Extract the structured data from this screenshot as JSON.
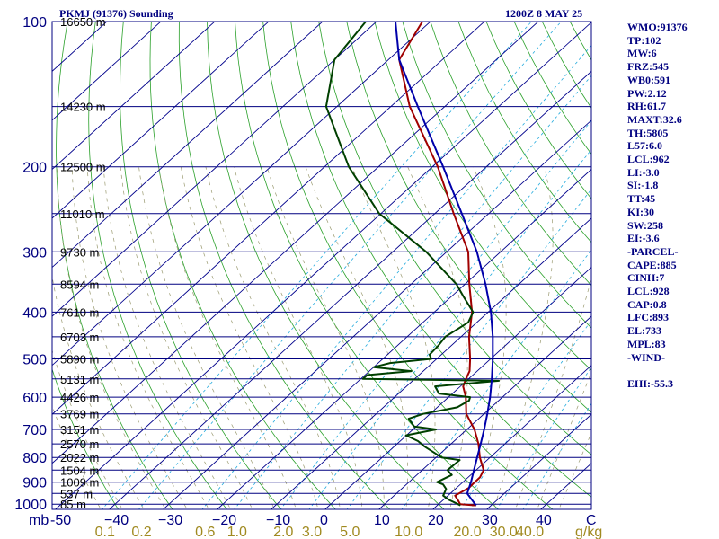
{
  "header": {
    "title": "PKMJ (91376) Sounding",
    "datetime": "1200Z  8 MAY 25"
  },
  "stats": [
    "WMO:91376",
    "TP:102",
    "MW:6",
    "FRZ:545",
    "WB0:591",
    "PW:2.12",
    "RH:61.7",
    "MAXT:32.6",
    "TH:5805",
    "L57:6.0",
    "LCL:962",
    "LI:-3.0",
    "SI:-1.8",
    "TT:45",
    "KI:30",
    "SW:258",
    "EI:-3.6",
    "-PARCEL-",
    "CAPE:885",
    "CINH:7",
    "LCL:928",
    "CAP:0.8",
    "LFC:893",
    "EL:733",
    "MPL:83",
    "-WIND-",
    "",
    "EHI:-55.3"
  ],
  "chart_data": {
    "type": "line",
    "title": "PKMJ (91376) Sounding",
    "chart_kind": "skew-T log-P sounding diagram",
    "pressure_ticks_mb": [
      100,
      200,
      300,
      400,
      500,
      600,
      700,
      800,
      900,
      1000
    ],
    "pressure_axis_unit": "mb",
    "temperature_ticks_c": [
      -50,
      -40,
      -30,
      -20,
      -10,
      0,
      10,
      20,
      30,
      40
    ],
    "temperature_tick_labels": [
      "-50",
      "−40",
      "−30",
      "−20",
      "−10",
      "0",
      "10",
      "20",
      "30",
      "40",
      "C"
    ],
    "mixing_ratio_labels": [
      "0.1",
      "0.2",
      "0.6",
      "1.0",
      "2.0",
      "3.0",
      "5.0",
      "10.0",
      "20.0",
      "30.0",
      "40.0",
      "g/kg"
    ],
    "height_labels": [
      {
        "p": 100,
        "label": "16650 m"
      },
      {
        "p": 150,
        "label": "14230 m"
      },
      {
        "p": 200,
        "label": "12500 m"
      },
      {
        "p": 250,
        "label": "11010 m"
      },
      {
        "p": 300,
        "label": "9730 m"
      },
      {
        "p": 350,
        "label": "8594 m"
      },
      {
        "p": 400,
        "label": "7610 m"
      },
      {
        "p": 450,
        "label": "6703 m"
      },
      {
        "p": 500,
        "label": "5890 m"
      },
      {
        "p": 550,
        "label": "5131 m"
      },
      {
        "p": 600,
        "label": "4426 m"
      },
      {
        "p": 650,
        "label": "3769 m"
      },
      {
        "p": 700,
        "label": "3151 m"
      },
      {
        "p": 750,
        "label": "2570 m"
      },
      {
        "p": 800,
        "label": "2022 m"
      },
      {
        "p": 850,
        "label": "1504 m"
      },
      {
        "p": 900,
        "label": "1009 m"
      },
      {
        "p": 950,
        "label": "537 m"
      },
      {
        "p": 1000,
        "label": "85 m"
      }
    ],
    "series": [
      {
        "color": "#a00000",
        "points": [
          [
            1006,
            27.2
          ],
          [
            1000,
            24.0
          ],
          [
            980,
            22.7
          ],
          [
            960,
            21.3
          ],
          [
            925,
            22.3
          ],
          [
            900,
            22.2
          ],
          [
            880,
            22.2
          ],
          [
            850,
            21.4
          ],
          [
            800,
            18.1
          ],
          [
            750,
            15.1
          ],
          [
            700,
            11.4
          ],
          [
            650,
            6.7
          ],
          [
            600,
            3.2
          ],
          [
            570,
            0.5
          ],
          [
            550,
            -0.5
          ],
          [
            530,
            -1.4
          ],
          [
            500,
            -3.8
          ],
          [
            450,
            -8.5
          ],
          [
            400,
            -13.0
          ],
          [
            350,
            -19.2
          ],
          [
            300,
            -26.0
          ],
          [
            250,
            -36.5
          ],
          [
            200,
            -49.0
          ],
          [
            150,
            -66.5
          ],
          [
            120,
            -78.0
          ],
          [
            100,
            -81.5
          ]
        ]
      },
      {
        "color": "#004000",
        "points": [
          [
            1006,
            24.3
          ],
          [
            1000,
            23.6
          ],
          [
            980,
            21.1
          ],
          [
            960,
            19.1
          ],
          [
            930,
            18.3
          ],
          [
            910,
            16.8
          ],
          [
            900,
            15.2
          ],
          [
            870,
            16.5
          ],
          [
            850,
            14.7
          ],
          [
            810,
            14.9
          ],
          [
            800,
            11.0
          ],
          [
            780,
            8.4
          ],
          [
            760,
            5.7
          ],
          [
            740,
            3.3
          ],
          [
            720,
            -0.1
          ],
          [
            700,
            4.3
          ],
          [
            690,
            -0.4
          ],
          [
            665,
            -3.0
          ],
          [
            650,
            -1.3
          ],
          [
            630,
            3.7
          ],
          [
            610,
            4.5
          ],
          [
            600,
            4.0
          ],
          [
            590,
            -2.5
          ],
          [
            570,
            -4.7
          ],
          [
            555,
            6.0
          ],
          [
            550,
            -19.6
          ],
          [
            540,
            -19.6
          ],
          [
            530,
            -12.2
          ],
          [
            520,
            -20.0
          ],
          [
            510,
            -17.8
          ],
          [
            500,
            -11.0
          ],
          [
            490,
            -12.2
          ],
          [
            470,
            -12.4
          ],
          [
            450,
            -12.9
          ],
          [
            420,
            -11.6
          ],
          [
            400,
            -12.8
          ],
          [
            370,
            -18.0
          ],
          [
            350,
            -21.6
          ],
          [
            300,
            -33.8
          ],
          [
            250,
            -50.3
          ],
          [
            200,
            -65.5
          ],
          [
            150,
            -82.0
          ],
          [
            120,
            -90.0
          ],
          [
            100,
            -92.0
          ]
        ]
      },
      {
        "color": "#0000aa",
        "points": [
          [
            1006,
            27.2
          ],
          [
            950,
            23.1
          ],
          [
            900,
            21.5
          ],
          [
            850,
            19.6
          ],
          [
            800,
            17.6
          ],
          [
            750,
            15.5
          ],
          [
            700,
            13.2
          ],
          [
            650,
            10.6
          ],
          [
            600,
            7.7
          ],
          [
            550,
            4.3
          ],
          [
            500,
            0.4
          ],
          [
            450,
            -4.1
          ],
          [
            400,
            -9.5
          ],
          [
            350,
            -16.2
          ],
          [
            300,
            -24.4
          ],
          [
            250,
            -35.0
          ],
          [
            200,
            -48.0
          ],
          [
            150,
            -65.0
          ],
          [
            120,
            -78.0
          ],
          [
            100,
            -86.5
          ]
        ]
      }
    ]
  }
}
